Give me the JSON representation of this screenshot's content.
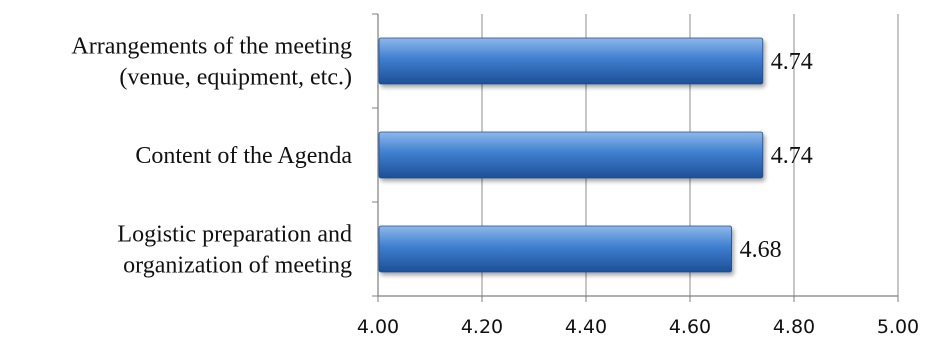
{
  "chart_data": {
    "type": "bar",
    "orientation": "horizontal",
    "categories": [
      "Arrangements of the meeting (venue, equipment, etc.)",
      "Content of the Agenda",
      "Logistic preparation and organization of meeting"
    ],
    "category_lines": [
      [
        "Arrangements of the meeting",
        "(venue, equipment, etc.)"
      ],
      [
        "Content of the Agenda"
      ],
      [
        "Logistic preparation and",
        "organization of meeting"
      ]
    ],
    "values": [
      4.74,
      4.74,
      4.68
    ],
    "value_labels": [
      "4.74",
      "4.74",
      "4.68"
    ],
    "xlim": [
      4.0,
      5.0
    ],
    "xticks": [
      "4.00",
      "4.20",
      "4.40",
      "4.60",
      "4.80",
      "5.00"
    ],
    "xtick_values": [
      4.0,
      4.2,
      4.4,
      4.6,
      4.8,
      5.0
    ],
    "grid": true,
    "legend": "none",
    "title": "",
    "xlabel": "",
    "ylabel": "",
    "colors": {
      "bar_light": "#8fb8ea",
      "bar_mid": "#3f7fd0",
      "bar_dark": "#1d4f96",
      "bar_edge": "#1f4e91",
      "grid": "#8c8c8c",
      "axis": "#7f7f7f"
    }
  }
}
